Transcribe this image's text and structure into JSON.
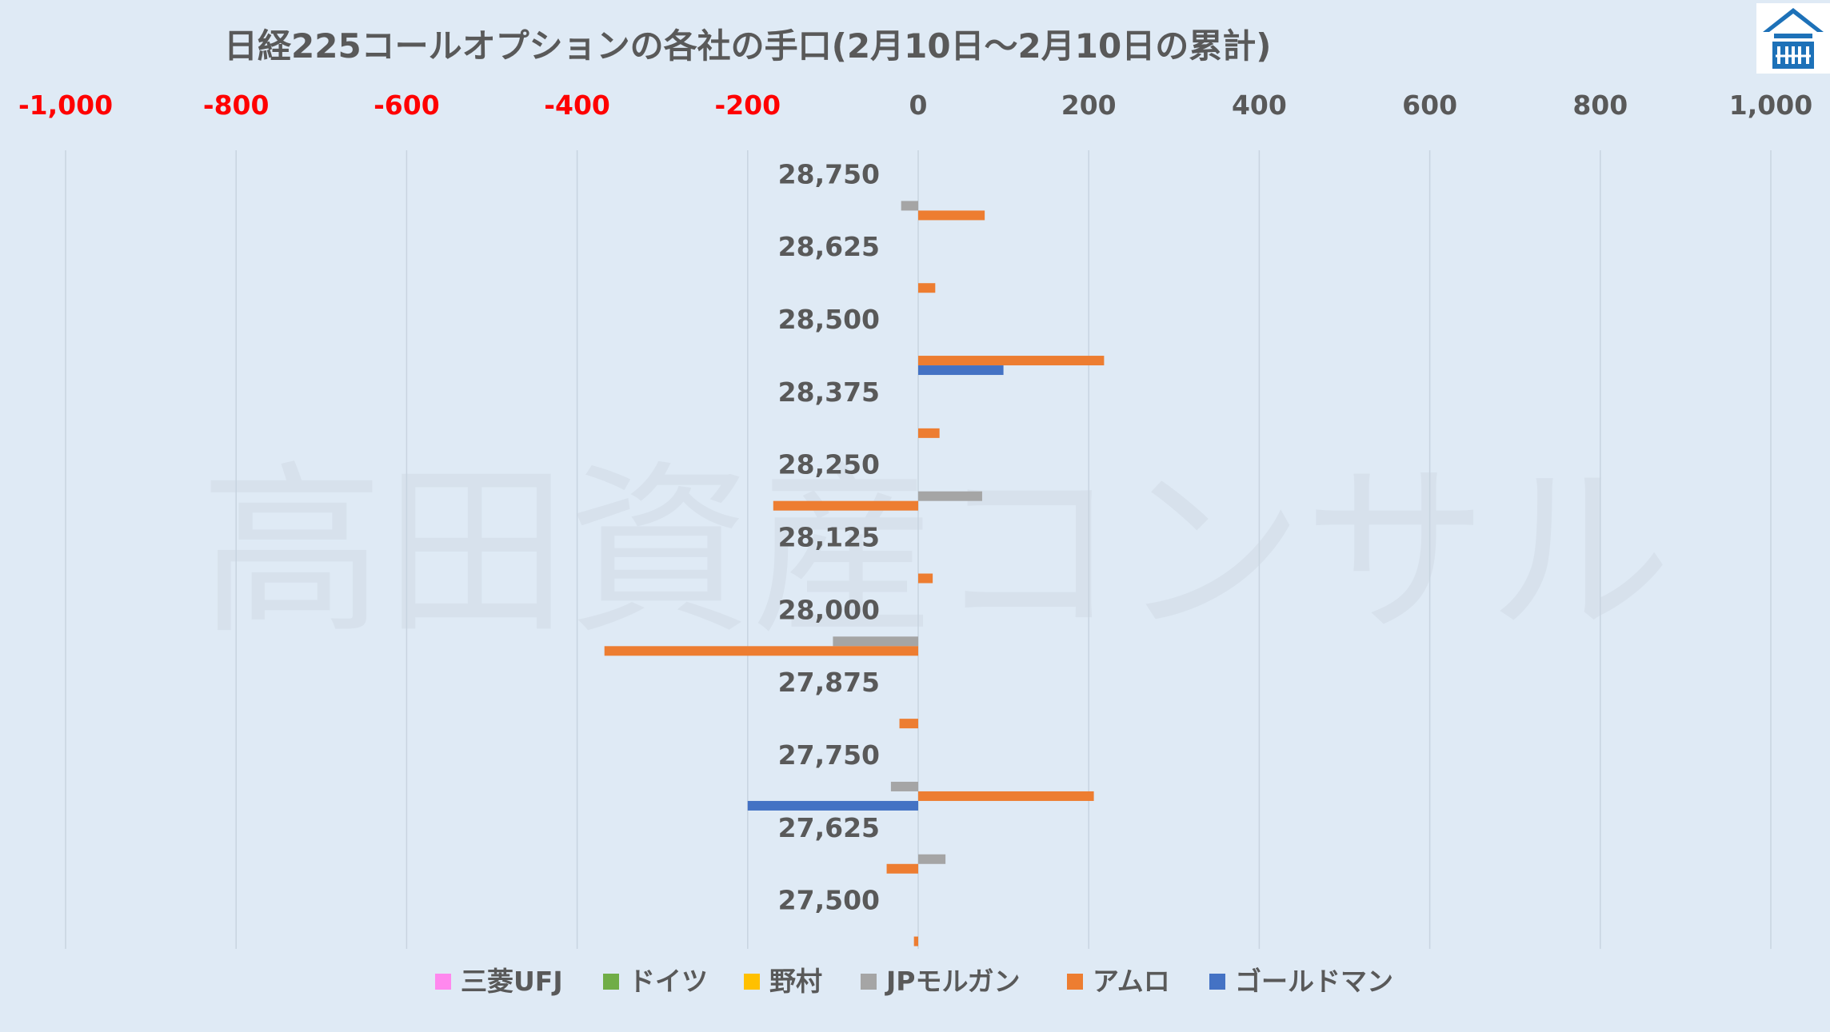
{
  "chart_data": {
    "type": "bar",
    "orientation": "horizontal",
    "title": "日経225コールオプションの各社の手口(2月10日～2月10日の累計)",
    "watermark": "高田資産コンサル",
    "logo": "company-logo",
    "xlim": [
      -1000,
      1000
    ],
    "x_ticks": [
      {
        "value": -1000,
        "label": "-1,000"
      },
      {
        "value": -800,
        "label": "-800"
      },
      {
        "value": -600,
        "label": "-600"
      },
      {
        "value": -400,
        "label": "-400"
      },
      {
        "value": -200,
        "label": "-200"
      },
      {
        "value": 0,
        "label": "0"
      },
      {
        "value": 200,
        "label": "200"
      },
      {
        "value": 400,
        "label": "400"
      },
      {
        "value": 600,
        "label": "600"
      },
      {
        "value": 800,
        "label": "800"
      },
      {
        "value": 1000,
        "label": "1,000"
      }
    ],
    "grid": true,
    "legend_position": "bottom",
    "categories": [
      "28,750",
      "28,625",
      "28,500",
      "28,375",
      "28,250",
      "28,125",
      "28,000",
      "27,875",
      "27,750",
      "27,625",
      "27,500"
    ],
    "series": [
      {
        "name": "三菱UFJ",
        "color": "#ff88ee",
        "values": [
          0,
          0,
          0,
          0,
          0,
          0,
          0,
          0,
          0,
          0,
          0
        ]
      },
      {
        "name": "ドイツ",
        "color": "#70ad47",
        "values": [
          0,
          0,
          0,
          0,
          0,
          0,
          0,
          0,
          0,
          0,
          0
        ]
      },
      {
        "name": "野村",
        "color": "#ffc000",
        "values": [
          0,
          0,
          0,
          0,
          0,
          0,
          0,
          0,
          0,
          0,
          0
        ]
      },
      {
        "name": "JPモルガン",
        "color": "#a5a5a5",
        "values": [
          -20,
          0,
          0,
          0,
          75,
          0,
          -100,
          0,
          -32,
          32,
          0
        ]
      },
      {
        "name": "アムロ",
        "color": "#ed7d31",
        "values": [
          78,
          20,
          218,
          25,
          -170,
          17,
          -368,
          -22,
          206,
          -37,
          -5
        ]
      },
      {
        "name": "ゴールドマン",
        "color": "#4472c4",
        "values": [
          0,
          0,
          100,
          0,
          0,
          0,
          0,
          0,
          -200,
          0,
          0
        ]
      }
    ],
    "colors": {
      "negative_tick": "#ff0000",
      "positive_tick": "#595959",
      "category_label": "#595959",
      "title": "#595959",
      "gridline": "#c8d4e0",
      "background": "#dfeaf5"
    }
  }
}
